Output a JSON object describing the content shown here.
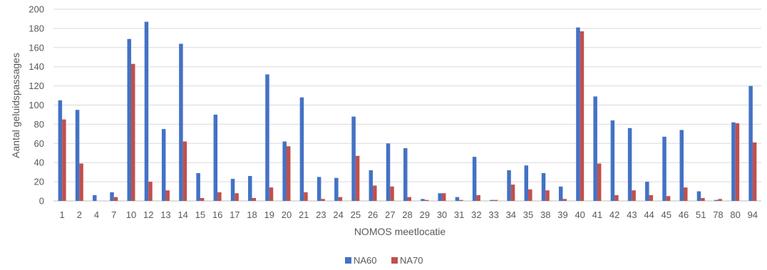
{
  "chart_data": {
    "type": "bar",
    "xlabel": "NOMOS meetlocatie",
    "ylabel": "Aantal geluidspassages",
    "ylim": [
      0,
      200
    ],
    "yticks": [
      0,
      20,
      40,
      60,
      80,
      100,
      120,
      140,
      160,
      180,
      200
    ],
    "grid": true,
    "legend": "bottom",
    "categories": [
      "1",
      "2",
      "4",
      "7",
      "10",
      "12",
      "13",
      "14",
      "15",
      "16",
      "17",
      "18",
      "19",
      "20",
      "21",
      "23",
      "24",
      "25",
      "26",
      "27",
      "28",
      "29",
      "30",
      "31",
      "32",
      "33",
      "34",
      "35",
      "38",
      "39",
      "40",
      "41",
      "42",
      "43",
      "44",
      "45",
      "46",
      "51",
      "78",
      "80",
      "94"
    ],
    "series": [
      {
        "name": "NA60",
        "color": "#4472C4",
        "values": [
          105,
          95,
          6,
          9,
          169,
          187,
          75,
          164,
          29,
          90,
          23,
          26,
          132,
          62,
          108,
          25,
          24,
          88,
          32,
          60,
          55,
          2,
          8,
          4,
          46,
          1,
          32,
          37,
          29,
          15,
          181,
          109,
          84,
          76,
          20,
          67,
          74,
          10,
          1,
          82,
          120
        ]
      },
      {
        "name": "NA70",
        "color": "#C0504D",
        "values": [
          85,
          39,
          0,
          4,
          143,
          20,
          11,
          62,
          3,
          9,
          8,
          3,
          14,
          57,
          9,
          2,
          4,
          47,
          16,
          15,
          4,
          1,
          8,
          1,
          6,
          1,
          17,
          12,
          11,
          2,
          177,
          39,
          6,
          11,
          6,
          5,
          14,
          3,
          2,
          81,
          61
        ]
      }
    ]
  }
}
